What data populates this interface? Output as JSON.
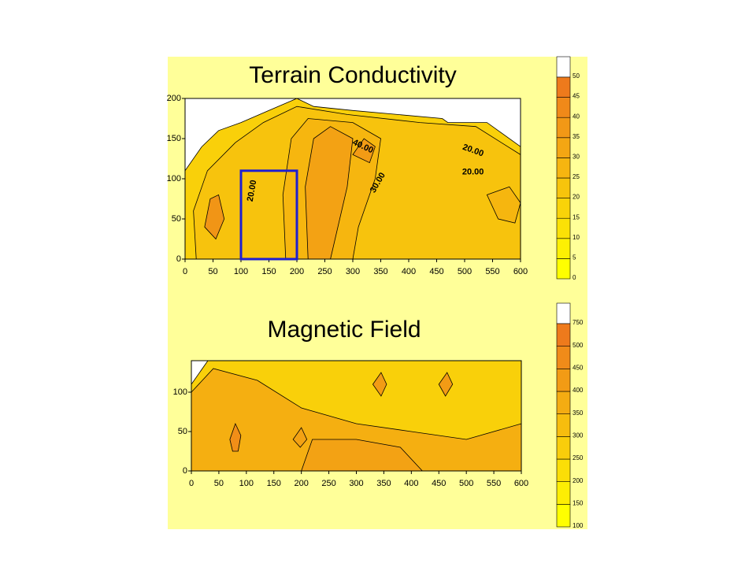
{
  "chart_data": [
    {
      "type": "contour",
      "title": "Terrain Conductivity",
      "xlim": [
        0,
        600
      ],
      "xticks": [
        0,
        50,
        100,
        150,
        200,
        250,
        300,
        350,
        400,
        450,
        500,
        550,
        600
      ],
      "ylim": [
        0,
        200
      ],
      "yticks": [
        0,
        50,
        100,
        150,
        200
      ],
      "colorbar_ticks": [
        0,
        5,
        10,
        15,
        20,
        25,
        30,
        35,
        40,
        45,
        50
      ],
      "colormap": [
        "#ffff00",
        "#ee7a1c"
      ],
      "contour_labels": [
        "20.00",
        "40.00",
        "30.00",
        "20.00",
        "20.00"
      ],
      "highlight_box": {
        "x": [
          100,
          200
        ],
        "y": [
          0,
          110
        ],
        "color": "#1f1fd0"
      }
    },
    {
      "type": "contour",
      "title": "Magnetic Field",
      "xlim": [
        0,
        600
      ],
      "xticks": [
        0,
        50,
        100,
        150,
        200,
        250,
        300,
        350,
        400,
        450,
        500,
        550,
        600
      ],
      "ylim": [
        0,
        140
      ],
      "yticks": [
        0,
        50,
        100
      ],
      "colorbar_ticks": [
        100,
        150,
        200,
        250,
        300,
        350,
        400,
        450,
        500,
        750
      ],
      "colormap": [
        "#ffff00",
        "#ee7a1c"
      ]
    }
  ]
}
